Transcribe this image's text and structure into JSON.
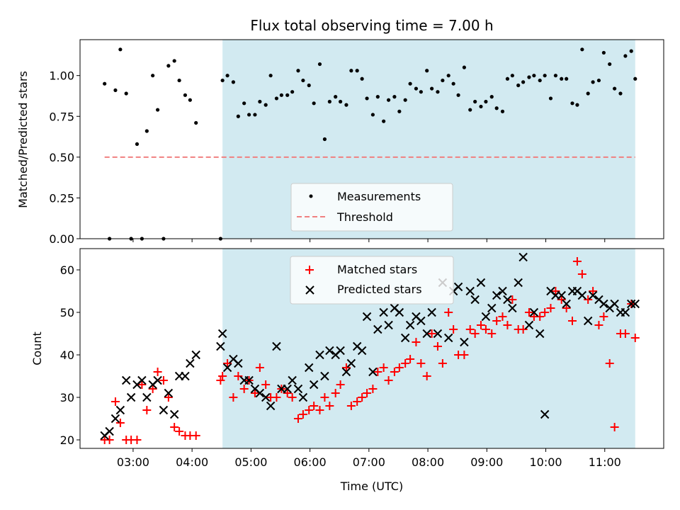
{
  "chart_data": [
    {
      "type": "scatter",
      "title": "Flux total observing time = 7.00 h",
      "ylabel": "Matched/Predicted stars",
      "xlim": [
        "02:06",
        "12:00"
      ],
      "ylim": [
        0,
        1.22
      ],
      "yticks": [
        "0.00",
        "0.25",
        "0.50",
        "0.75",
        "1.00"
      ],
      "shaded_region": [
        "04:31",
        "11:31"
      ],
      "shade_color": "#add8e6",
      "threshold": {
        "name": "Threshold",
        "value": 0.5,
        "x_range": [
          "02:31",
          "11:31"
        ],
        "color": "#f08080"
      },
      "legend": {
        "location": "lower center",
        "entries": [
          "Measurements",
          "Threshold"
        ]
      },
      "series": [
        {
          "name": "Measurements",
          "color": "#000000",
          "x": [
            "02:31",
            "02:36",
            "02:42",
            "02:47",
            "02:53",
            "02:58",
            "03:04",
            "03:09",
            "03:14",
            "03:20",
            "03:25",
            "03:31",
            "03:36",
            "03:42",
            "03:47",
            "03:53",
            "03:58",
            "04:04",
            "04:29",
            "04:31",
            "04:36",
            "04:42",
            "04:47",
            "04:53",
            "04:58",
            "05:04",
            "05:09",
            "05:15",
            "05:20",
            "05:26",
            "05:31",
            "05:37",
            "05:42",
            "05:48",
            "05:53",
            "05:59",
            "06:04",
            "06:10",
            "06:15",
            "06:20",
            "06:26",
            "06:31",
            "06:37",
            "06:42",
            "06:48",
            "06:53",
            "06:58",
            "07:04",
            "07:09",
            "07:15",
            "07:20",
            "07:26",
            "07:31",
            "07:37",
            "07:42",
            "07:48",
            "07:53",
            "07:59",
            "08:04",
            "08:10",
            "08:15",
            "08:21",
            "08:26",
            "08:31",
            "08:37",
            "08:43",
            "08:48",
            "08:54",
            "08:59",
            "09:05",
            "09:10",
            "09:16",
            "09:21",
            "09:26",
            "09:32",
            "09:37",
            "09:43",
            "09:48",
            "09:54",
            "09:59",
            "10:05",
            "10:10",
            "10:16",
            "10:21",
            "10:27",
            "10:32",
            "10:37",
            "10:43",
            "10:48",
            "10:54",
            "10:59",
            "11:05",
            "11:10",
            "11:16",
            "11:21",
            "11:27",
            "11:31"
          ],
          "y": [
            0.95,
            0.0,
            0.91,
            1.16,
            0.89,
            0.0,
            0.58,
            0.0,
            0.66,
            1.0,
            0.79,
            0.0,
            1.06,
            1.09,
            0.97,
            0.88,
            0.85,
            0.71,
            0.0,
            0.97,
            1.0,
            0.96,
            0.75,
            0.83,
            0.76,
            0.76,
            0.84,
            0.82,
            1.0,
            0.86,
            0.88,
            0.88,
            0.9,
            1.03,
            0.97,
            0.94,
            0.83,
            1.07,
            0.61,
            0.84,
            0.87,
            0.84,
            0.82,
            1.03,
            1.03,
            0.98,
            0.86,
            0.76,
            0.87,
            0.72,
            0.85,
            0.87,
            0.78,
            0.85,
            0.95,
            0.92,
            0.9,
            1.03,
            0.92,
            0.9,
            0.97,
            1.0,
            0.95,
            0.88,
            1.05,
            0.79,
            0.84,
            0.81,
            0.84,
            0.87,
            0.8,
            0.78,
            0.98,
            1.0,
            0.94,
            0.96,
            0.99,
            1.0,
            0.97,
            1.0,
            0.86,
            1.0,
            0.98,
            0.98,
            0.83,
            0.82,
            1.16,
            0.89,
            0.96,
            0.97,
            1.14,
            1.07,
            0.92,
            0.89,
            1.12,
            1.15,
            0.98
          ]
        }
      ]
    },
    {
      "type": "scatter",
      "xlabel": "Time (UTC)",
      "ylabel": "Count",
      "xlim": [
        "02:06",
        "12:00"
      ],
      "ylim": [
        18,
        65
      ],
      "xticks": [
        "03:00",
        "04:00",
        "05:00",
        "06:00",
        "07:00",
        "08:00",
        "09:00",
        "10:00",
        "11:00"
      ],
      "yticks": [
        "20",
        "30",
        "40",
        "50",
        "60"
      ],
      "shaded_region": [
        "04:31",
        "11:31"
      ],
      "shade_color": "#add8e6",
      "legend": {
        "location": "upper center",
        "entries": [
          "Matched stars",
          "Predicted stars"
        ]
      },
      "series": [
        {
          "name": "Matched stars",
          "color": "#ff0000",
          "marker": "+",
          "x": [
            "02:31",
            "02:36",
            "02:42",
            "02:47",
            "02:53",
            "02:58",
            "03:04",
            "03:09",
            "03:14",
            "03:20",
            "03:25",
            "03:31",
            "03:36",
            "03:42",
            "03:47",
            "03:53",
            "03:58",
            "04:04",
            "04:29",
            "04:31",
            "04:36",
            "04:42",
            "04:47",
            "04:53",
            "04:58",
            "05:04",
            "05:09",
            "05:15",
            "05:20",
            "05:26",
            "05:31",
            "05:37",
            "05:42",
            "05:48",
            "05:53",
            "05:59",
            "06:04",
            "06:10",
            "06:15",
            "06:20",
            "06:26",
            "06:31",
            "06:37",
            "06:42",
            "06:48",
            "06:53",
            "06:58",
            "07:04",
            "07:09",
            "07:15",
            "07:20",
            "07:26",
            "07:31",
            "07:37",
            "07:42",
            "07:48",
            "07:53",
            "07:59",
            "08:04",
            "08:10",
            "08:15",
            "08:21",
            "08:26",
            "08:31",
            "08:37",
            "08:43",
            "08:48",
            "08:54",
            "08:59",
            "09:05",
            "09:10",
            "09:16",
            "09:21",
            "09:26",
            "09:32",
            "09:37",
            "09:43",
            "09:48",
            "09:54",
            "09:59",
            "10:05",
            "10:10",
            "10:16",
            "10:21",
            "10:27",
            "10:32",
            "10:37",
            "10:43",
            "10:48",
            "10:54",
            "10:59",
            "11:05",
            "11:10",
            "11:16",
            "11:21",
            "11:27",
            "11:31"
          ],
          "y": [
            20,
            20,
            29,
            24,
            20,
            20,
            20,
            33,
            27,
            32,
            36,
            34,
            30,
            23,
            22,
            21,
            21,
            21,
            34,
            35,
            38,
            30,
            35,
            32,
            34,
            31,
            37,
            33,
            30,
            30,
            32,
            31,
            30,
            25,
            26,
            27,
            28,
            27,
            30,
            28,
            31,
            33,
            37,
            28,
            29,
            30,
            31,
            32,
            36,
            37,
            34,
            36,
            37,
            38,
            39,
            43,
            38,
            35,
            45,
            42,
            38,
            50,
            46,
            40,
            40,
            46,
            45,
            47,
            46,
            45,
            48,
            49,
            47,
            53,
            46,
            46,
            50,
            49,
            49,
            50,
            51,
            55,
            53,
            51,
            48,
            62,
            59,
            53,
            55,
            47,
            49,
            38,
            23,
            45,
            45,
            52,
            44
          ]
        },
        {
          "name": "Predicted stars",
          "color": "#000000",
          "marker": "x",
          "x": [
            "02:31",
            "02:36",
            "02:42",
            "02:47",
            "02:53",
            "02:58",
            "03:04",
            "03:09",
            "03:14",
            "03:20",
            "03:25",
            "03:31",
            "03:36",
            "03:42",
            "03:47",
            "03:53",
            "03:58",
            "04:04",
            "04:29",
            "04:31",
            "04:36",
            "04:42",
            "04:47",
            "04:53",
            "04:58",
            "05:04",
            "05:09",
            "05:15",
            "05:20",
            "05:26",
            "05:31",
            "05:37",
            "05:42",
            "05:48",
            "05:53",
            "05:59",
            "06:04",
            "06:10",
            "06:15",
            "06:20",
            "06:26",
            "06:31",
            "06:37",
            "06:42",
            "06:48",
            "06:53",
            "06:58",
            "07:04",
            "07:09",
            "07:15",
            "07:20",
            "07:26",
            "07:31",
            "07:37",
            "07:42",
            "07:48",
            "07:53",
            "07:59",
            "08:04",
            "08:10",
            "08:15",
            "08:21",
            "08:26",
            "08:31",
            "08:37",
            "08:43",
            "08:48",
            "08:54",
            "08:59",
            "09:05",
            "09:10",
            "09:16",
            "09:21",
            "09:26",
            "09:32",
            "09:37",
            "09:43",
            "09:48",
            "09:54",
            "09:59",
            "10:05",
            "10:10",
            "10:16",
            "10:21",
            "10:27",
            "10:32",
            "10:37",
            "10:43",
            "10:48",
            "10:54",
            "10:59",
            "11:05",
            "11:10",
            "11:16",
            "11:21",
            "11:27",
            "11:31"
          ],
          "y": [
            21,
            22,
            25,
            27,
            34,
            30,
            33,
            34,
            30,
            33,
            34,
            27,
            31,
            26,
            35,
            35,
            38,
            40,
            42,
            45,
            37,
            39,
            38,
            34,
            34,
            32,
            31,
            30,
            28,
            42,
            32,
            32,
            34,
            32,
            30,
            37,
            33,
            40,
            35,
            41,
            40,
            41,
            36,
            38,
            42,
            41,
            49,
            36,
            46,
            50,
            47,
            51,
            50,
            44,
            47,
            49,
            48,
            45,
            50,
            45,
            57,
            44,
            55,
            56,
            43,
            55,
            53,
            57,
            49,
            51,
            54,
            55,
            53,
            51,
            57,
            63,
            47,
            50,
            45,
            26,
            55,
            54,
            54,
            52,
            55,
            55,
            54,
            48,
            54,
            53,
            52,
            51,
            52,
            50,
            50,
            52,
            52
          ]
        }
      ]
    }
  ]
}
